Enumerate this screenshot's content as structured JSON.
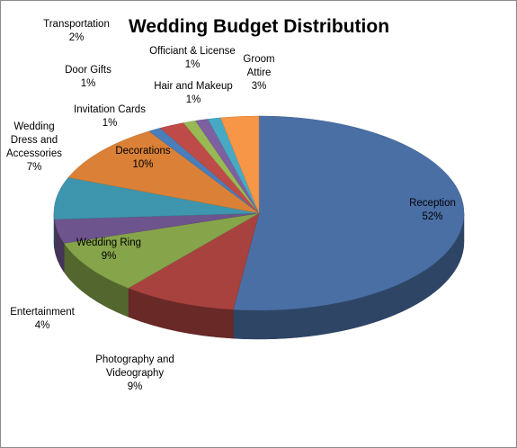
{
  "chart_data": {
    "type": "pie",
    "title": "Wedding Budget Distribution",
    "slices": [
      {
        "label": "Reception",
        "value": 52,
        "pct_label": "52%",
        "color": "#4a6fa5"
      },
      {
        "label": "Photography and Videography",
        "value": 9,
        "pct_label": "9%",
        "color": "#a8423f"
      },
      {
        "label": "Wedding Ring",
        "value": 9,
        "pct_label": "9%",
        "color": "#86a44a"
      },
      {
        "label": "Entertainment",
        "value": 4,
        "pct_label": "4%",
        "color": "#6e548d"
      },
      {
        "label": "Wedding Dress and Accessories",
        "value": 7,
        "pct_label": "7%",
        "color": "#3d96ae"
      },
      {
        "label": "Decorations",
        "value": 10,
        "pct_label": "10%",
        "color": "#da8137"
      },
      {
        "label": "Invitation Cards",
        "value": 1,
        "pct_label": "1%",
        "color": "#4a7ebb"
      },
      {
        "label": "Transportation",
        "value": 2,
        "pct_label": "2%",
        "color": "#be4b48"
      },
      {
        "label": "Door Gifts",
        "value": 1,
        "pct_label": "1%",
        "color": "#98b954"
      },
      {
        "label": "Hair and Makeup",
        "value": 1,
        "pct_label": "1%",
        "color": "#7d60a0"
      },
      {
        "label": "Officiant & License",
        "value": 1,
        "pct_label": "1%",
        "color": "#46aac5"
      },
      {
        "label": "Groom Attire",
        "value": 3,
        "pct_label": "3%",
        "color": "#f79646"
      }
    ]
  }
}
